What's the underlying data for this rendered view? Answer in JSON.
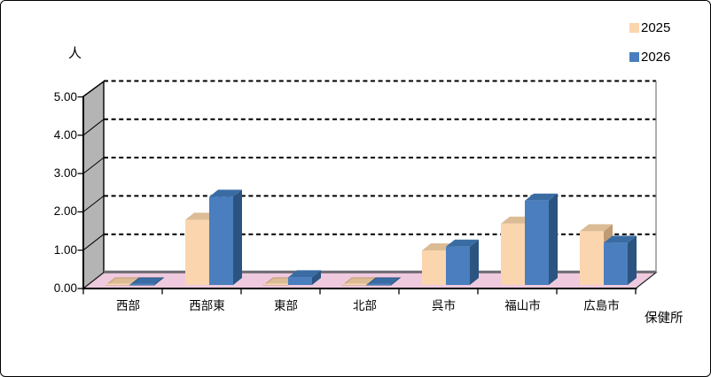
{
  "window": {
    "background": "#FFFFFF",
    "border_color": "#000000"
  },
  "chart_data": {
    "type": "bar",
    "style": "3d-clustered-column",
    "title": "",
    "y_axis_title": "人",
    "x_axis_title": "保健所",
    "categories": [
      "西部",
      "西部東",
      "東部",
      "北部",
      "呉市",
      "福山市",
      "広島市"
    ],
    "series": [
      {
        "name": "2025",
        "color": "#FAD5AE",
        "top_color": "#DCBC95",
        "side_color": "#C09A71",
        "values": [
          0.0,
          1.7,
          0.0,
          0.0,
          0.9,
          1.6,
          1.4
        ]
      },
      {
        "name": "2026",
        "color": "#4A7EBE",
        "top_color": "#3A6CA4",
        "side_color": "#2B5480",
        "values": [
          0.0,
          2.3,
          0.2,
          0.0,
          1.0,
          2.2,
          1.1
        ]
      }
    ],
    "y_ticks": [
      "0.00",
      "1.00",
      "2.00",
      "3.00",
      "4.00",
      "5.00"
    ],
    "ylim": [
      0,
      5
    ],
    "grid": "horizontal-dashed-black",
    "legend_position": "top-right",
    "wall_color": "#B4B4B4",
    "floor_color": "#EFCADE",
    "floor_back_edge_color": "#6E6E76",
    "gridline_color": "#000000",
    "axis_color": "#000000"
  }
}
